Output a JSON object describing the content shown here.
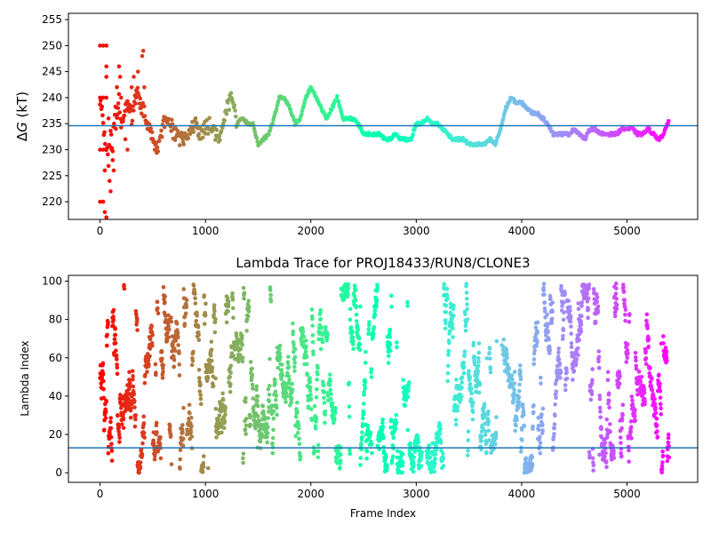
{
  "chart_data": [
    {
      "type": "scatter",
      "title": "",
      "xlabel": "",
      "ylabel": "ΔG (kT)",
      "ylabel_parts": {
        "delta": "Δ",
        "var": "G",
        "unit": " (kT)"
      },
      "xlim": [
        -300,
        5670
      ],
      "ylim": [
        216.6,
        256.2
      ],
      "xticks": [
        0,
        1000,
        2000,
        3000,
        4000,
        5000
      ],
      "xtick_labels": [
        "0",
        "1000",
        "2000",
        "3000",
        "4000",
        "5000"
      ],
      "yticks": [
        220,
        225,
        230,
        235,
        240,
        245,
        250,
        255
      ],
      "ytick_labels": [
        "220",
        "225",
        "230",
        "235",
        "240",
        "245",
        "250",
        "255"
      ],
      "reference_line": 234.6,
      "colormap": "rainbow (red at frame 0 → violet at final frame)",
      "x_max": 5400,
      "trace_x": [
        0,
        30,
        60,
        80,
        100,
        120,
        140,
        160,
        180,
        200,
        230,
        260,
        300,
        350,
        400,
        450,
        500,
        550,
        600,
        650,
        700,
        750,
        800,
        850,
        900,
        950,
        1000,
        1050,
        1100,
        1150,
        1200,
        1250,
        1300,
        1350,
        1400,
        1450,
        1500,
        1550,
        1600,
        1650,
        1700,
        1750,
        1800,
        1850,
        1900,
        1950,
        2000,
        2050,
        2100,
        2150,
        2200,
        2250,
        2300,
        2350,
        2400,
        2450,
        2500,
        2550,
        2600,
        2650,
        2700,
        2750,
        2800,
        2850,
        2900,
        2950,
        3000,
        3050,
        3100,
        3150,
        3200,
        3250,
        3300,
        3350,
        3400,
        3450,
        3500,
        3550,
        3600,
        3650,
        3700,
        3750,
        3800,
        3850,
        3900,
        3950,
        4000,
        4050,
        4100,
        4150,
        4200,
        4250,
        4300,
        4350,
        4400,
        4450,
        4500,
        4550,
        4600,
        4650,
        4700,
        4750,
        4800,
        4850,
        4900,
        4950,
        5000,
        5050,
        5100,
        5150,
        5200,
        5250,
        5300,
        5350,
        5400
      ],
      "trace_y": [
        240,
        235,
        230,
        228,
        233,
        231,
        238,
        236,
        240,
        234,
        237,
        239,
        236,
        241,
        238,
        235,
        232,
        230,
        235,
        237,
        233,
        232,
        232,
        234,
        235,
        233,
        234,
        235,
        233,
        233,
        238,
        240,
        235,
        236,
        235,
        235,
        231,
        232,
        233,
        236,
        240,
        240,
        238,
        235,
        236,
        240,
        242,
        240,
        238,
        236,
        238,
        240,
        236,
        236,
        236,
        235,
        233,
        233,
        233,
        233,
        232,
        232,
        233,
        232,
        232,
        232,
        235,
        235,
        236,
        235,
        235,
        234,
        233,
        232,
        232,
        232,
        231,
        231,
        231,
        231,
        232,
        231,
        234,
        238,
        240,
        239,
        239,
        238,
        237,
        237,
        236,
        235,
        233,
        233,
        233,
        233,
        234,
        233,
        232,
        234,
        234,
        233,
        233,
        233,
        233,
        234,
        234,
        234,
        233,
        233,
        234,
        233,
        232,
        233,
        236
      ],
      "early_scatter": [
        [
          0,
          250
        ],
        [
          30,
          250
        ],
        [
          60,
          250
        ],
        [
          0,
          240
        ],
        [
          30,
          240
        ],
        [
          60,
          240
        ],
        [
          0,
          230
        ],
        [
          30,
          230
        ],
        [
          45,
          226
        ],
        [
          0,
          220
        ],
        [
          30,
          220
        ],
        [
          45,
          218
        ],
        [
          60,
          217
        ],
        [
          60,
          246
        ],
        [
          60,
          244
        ],
        [
          80,
          236
        ],
        [
          90,
          224
        ],
        [
          100,
          222
        ],
        [
          110,
          230
        ],
        [
          120,
          228
        ],
        [
          130,
          226
        ],
        [
          150,
          234
        ],
        [
          160,
          242
        ],
        [
          170,
          238
        ],
        [
          180,
          246
        ],
        [
          190,
          244
        ],
        [
          200,
          240
        ],
        [
          220,
          236
        ],
        [
          240,
          232
        ],
        [
          260,
          230
        ],
        [
          280,
          238
        ],
        [
          300,
          242
        ],
        [
          320,
          244
        ],
        [
          340,
          240
        ],
        [
          360,
          245
        ],
        [
          380,
          238
        ],
        [
          400,
          248
        ],
        [
          410,
          249
        ],
        [
          420,
          242
        ]
      ]
    },
    {
      "type": "scatter",
      "title": "Lambda Trace for PROJ18433/RUN8/CLONE3",
      "xlabel": "Frame Index",
      "ylabel": "Lambda Index",
      "xlim": [
        -300,
        5670
      ],
      "ylim": [
        -5,
        103
      ],
      "xticks": [
        0,
        1000,
        2000,
        3000,
        4000,
        5000
      ],
      "xtick_labels": [
        "0",
        "1000",
        "2000",
        "3000",
        "4000",
        "5000"
      ],
      "yticks": [
        0,
        20,
        40,
        60,
        80,
        100
      ],
      "ytick_labels": [
        "0",
        "20",
        "40",
        "60",
        "80",
        "100"
      ],
      "reference_line": 13,
      "colormap": "rainbow (red at frame 0 → violet at final frame)",
      "x_max": 5400,
      "n_points": 5400,
      "value_range": [
        0,
        99
      ],
      "sparse_frame_ranges": [
        [
          3050,
          3100
        ],
        [
          3760,
          3820
        ]
      ]
    }
  ]
}
